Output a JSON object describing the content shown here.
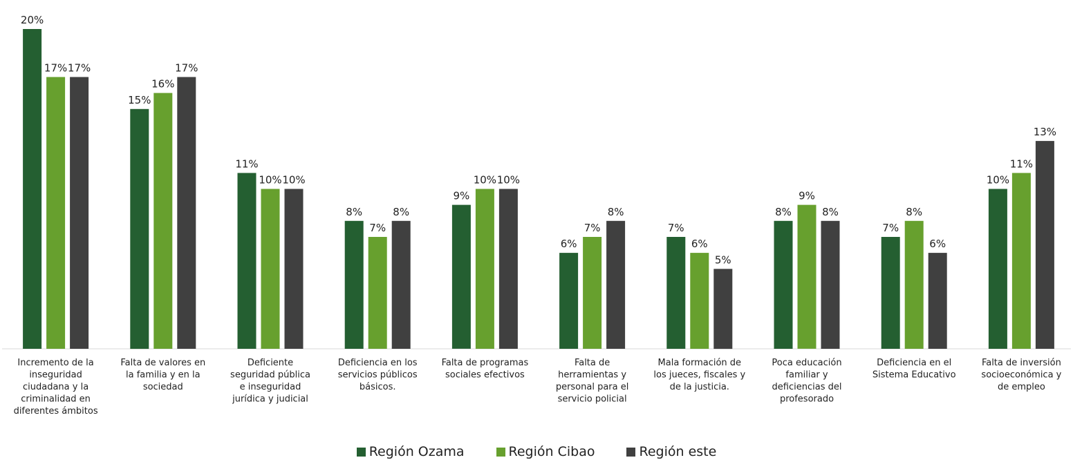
{
  "chart_data": {
    "type": "bar",
    "title": "",
    "xlabel": "",
    "ylabel": "",
    "ylim": [
      0,
      20
    ],
    "grid": false,
    "legend_position": "bottom",
    "value_format": "percent",
    "categories": [
      [
        "Incremento de la",
        "inseguridad",
        "ciudadana y la",
        "criminalidad en",
        "diferentes ámbitos"
      ],
      [
        "Falta de valores en",
        "la familia y en la",
        "sociedad"
      ],
      [
        "Deficiente",
        "seguridad pública",
        "e inseguridad",
        "jurídica y judicial"
      ],
      [
        "Deficiencia en los",
        "servicios públicos",
        "básicos."
      ],
      [
        "Falta de programas",
        "sociales efectivos"
      ],
      [
        "Falta de",
        "herramientas y",
        "personal para el",
        "servicio policial"
      ],
      [
        "Mala formación de",
        "los jueces, fiscales y",
        "de la justicia."
      ],
      [
        "Poca educación",
        "familiar y",
        "deficiencias del",
        "profesorado"
      ],
      [
        "Deficiencia en el",
        "Sistema Educativo"
      ],
      [
        "Falta de inversión",
        "socioeconómica y",
        "de empleo"
      ]
    ],
    "series": [
      {
        "name": "Región Ozama",
        "color": "#245f31",
        "values": [
          20,
          15,
          11,
          8,
          9,
          6,
          7,
          8,
          7,
          10
        ]
      },
      {
        "name": "Región Cibao",
        "color": "#67a02e",
        "values": [
          17,
          16,
          10,
          7,
          10,
          7,
          6,
          9,
          8,
          11
        ]
      },
      {
        "name": "Región este",
        "color": "#404040",
        "values": [
          17,
          17,
          10,
          8,
          10,
          8,
          5,
          8,
          6,
          13
        ]
      }
    ]
  }
}
